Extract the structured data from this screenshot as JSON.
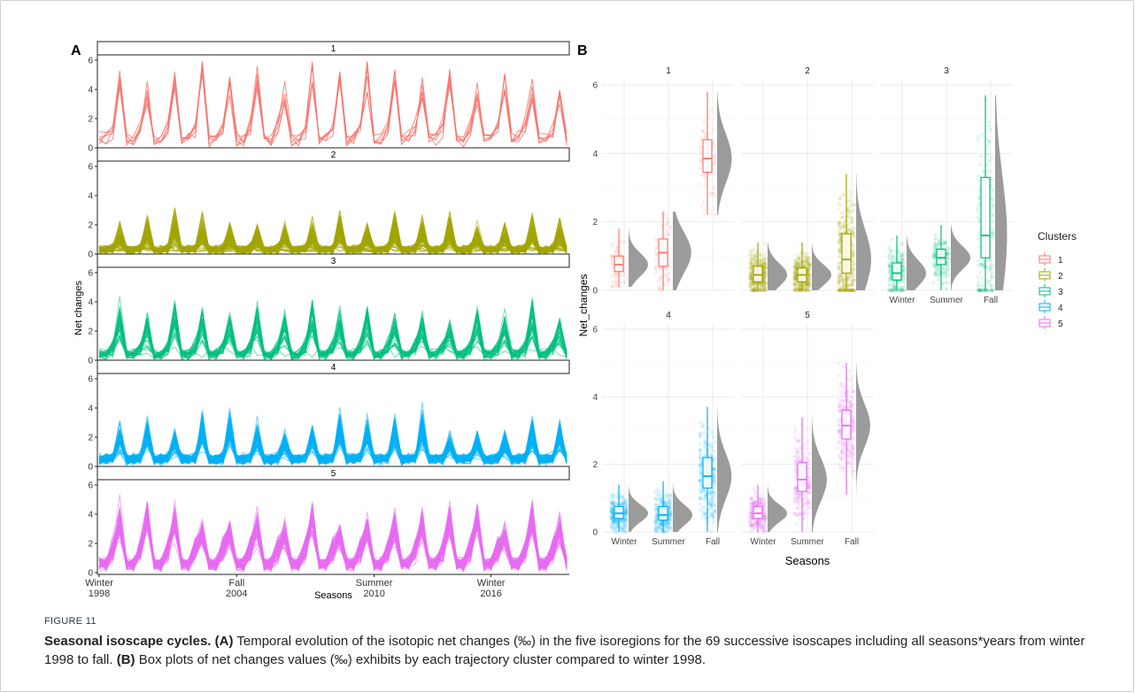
{
  "colors": {
    "c1": "#F8766D",
    "c2": "#A3A500",
    "c3": "#00BF7D",
    "c4": "#00B0F6",
    "c5": "#E76BF3",
    "density": "#9b9b9b",
    "grid": "#ebebeb"
  },
  "caption": {
    "figure_label": "FIGURE 11",
    "title": "Seasonal isoscape cycles.",
    "a_label": "(A)",
    "a_text": "Temporal evolution of the isotopic net changes (‰) in the five isoregions for the 69 successive isoscapes including all seasons*years from winter 1998 to fall.",
    "b_label": "(B)",
    "b_text": "Box plots of net changes values (‰) exhibits by each trajectory cluster compared to winter 1998."
  },
  "chart_data": [
    {
      "panel": "A",
      "type": "line",
      "xlabel": "Seasons",
      "ylabel": "Net changes",
      "ylim": [
        0,
        6
      ],
      "yticks": [
        0,
        2,
        4,
        6
      ],
      "x_tick_labels": [
        {
          "index": 0,
          "line1": "Winter",
          "line2": "1998"
        },
        {
          "index": 20,
          "line1": "Fall",
          "line2": "2004"
        },
        {
          "index": 40,
          "line1": "Summer",
          "line2": "2010"
        },
        {
          "index": 57,
          "line1": "Winter",
          "line2": "2016"
        }
      ],
      "n_timepoints": 69,
      "facets": [
        {
          "label": "1",
          "n_lines": 6,
          "fall_peak": 4.3,
          "peak_spread": 0.6,
          "base": 0.6,
          "summer": 1.3,
          "noise": 0.4
        },
        {
          "label": "2",
          "n_lines": 90,
          "fall_peak": 1.3,
          "peak_spread": 1.3,
          "base": 0.3,
          "summer": 0.4,
          "noise": 0.25
        },
        {
          "label": "3",
          "n_lines": 35,
          "fall_peak": 2.2,
          "peak_spread": 1.5,
          "base": 0.4,
          "summer": 0.9,
          "noise": 0.35
        },
        {
          "label": "4",
          "n_lines": 70,
          "fall_peak": 1.9,
          "peak_spread": 1.0,
          "base": 0.5,
          "summer": 0.6,
          "noise": 0.25
        },
        {
          "label": "5",
          "n_lines": 70,
          "fall_peak": 3.1,
          "peak_spread": 0.8,
          "base": 0.6,
          "summer": 1.6,
          "noise": 0.35
        }
      ]
    },
    {
      "panel": "B",
      "type": "box",
      "xlabel": "Seasons",
      "ylabel": "Net_changes",
      "ylim": [
        0,
        6
      ],
      "yticks": [
        0,
        2,
        4,
        6
      ],
      "categories": [
        "Winter",
        "Summer",
        "Fall"
      ],
      "legend": {
        "title": "Clusters",
        "entries": [
          "1",
          "2",
          "3",
          "4",
          "5"
        ],
        "position": "right"
      },
      "facets": [
        {
          "label": "1",
          "boxes": [
            {
              "season": "Winter",
              "min": 0.1,
              "q1": 0.55,
              "median": 0.75,
              "q3": 1.0,
              "max": 1.8
            },
            {
              "season": "Summer",
              "min": 0.0,
              "q1": 0.7,
              "median": 1.1,
              "q3": 1.5,
              "max": 2.3
            },
            {
              "season": "Fall",
              "min": 2.2,
              "q1": 3.45,
              "median": 3.85,
              "q3": 4.4,
              "max": 5.8
            }
          ]
        },
        {
          "label": "2",
          "boxes": [
            {
              "season": "Winter",
              "min": 0.0,
              "q1": 0.25,
              "median": 0.45,
              "q3": 0.7,
              "max": 1.4
            },
            {
              "season": "Summer",
              "min": 0.0,
              "q1": 0.25,
              "median": 0.45,
              "q3": 0.65,
              "max": 1.4
            },
            {
              "season": "Fall",
              "min": 0.0,
              "q1": 0.5,
              "median": 0.9,
              "q3": 1.65,
              "max": 3.4
            }
          ]
        },
        {
          "label": "3",
          "boxes": [
            {
              "season": "Winter",
              "min": 0.0,
              "q1": 0.3,
              "median": 0.5,
              "q3": 0.8,
              "max": 1.6
            },
            {
              "season": "Summer",
              "min": 0.0,
              "q1": 0.75,
              "median": 0.95,
              "q3": 1.2,
              "max": 1.9
            },
            {
              "season": "Fall",
              "min": 0.0,
              "q1": 0.95,
              "median": 1.6,
              "q3": 3.3,
              "max": 5.7
            }
          ]
        },
        {
          "label": "4",
          "boxes": [
            {
              "season": "Winter",
              "min": 0.0,
              "q1": 0.4,
              "median": 0.55,
              "q3": 0.75,
              "max": 1.4
            },
            {
              "season": "Summer",
              "min": 0.0,
              "q1": 0.35,
              "median": 0.5,
              "q3": 0.75,
              "max": 1.5
            },
            {
              "season": "Fall",
              "min": 0.0,
              "q1": 1.3,
              "median": 1.65,
              "q3": 2.2,
              "max": 3.7
            }
          ]
        },
        {
          "label": "5",
          "boxes": [
            {
              "season": "Winter",
              "min": 0.0,
              "q1": 0.4,
              "median": 0.55,
              "q3": 0.75,
              "max": 1.4
            },
            {
              "season": "Summer",
              "min": 0.0,
              "q1": 1.2,
              "median": 1.55,
              "q3": 2.05,
              "max": 3.4
            },
            {
              "season": "Fall",
              "min": 1.1,
              "q1": 2.75,
              "median": 3.15,
              "q3": 3.6,
              "max": 5.0
            }
          ]
        }
      ]
    }
  ]
}
